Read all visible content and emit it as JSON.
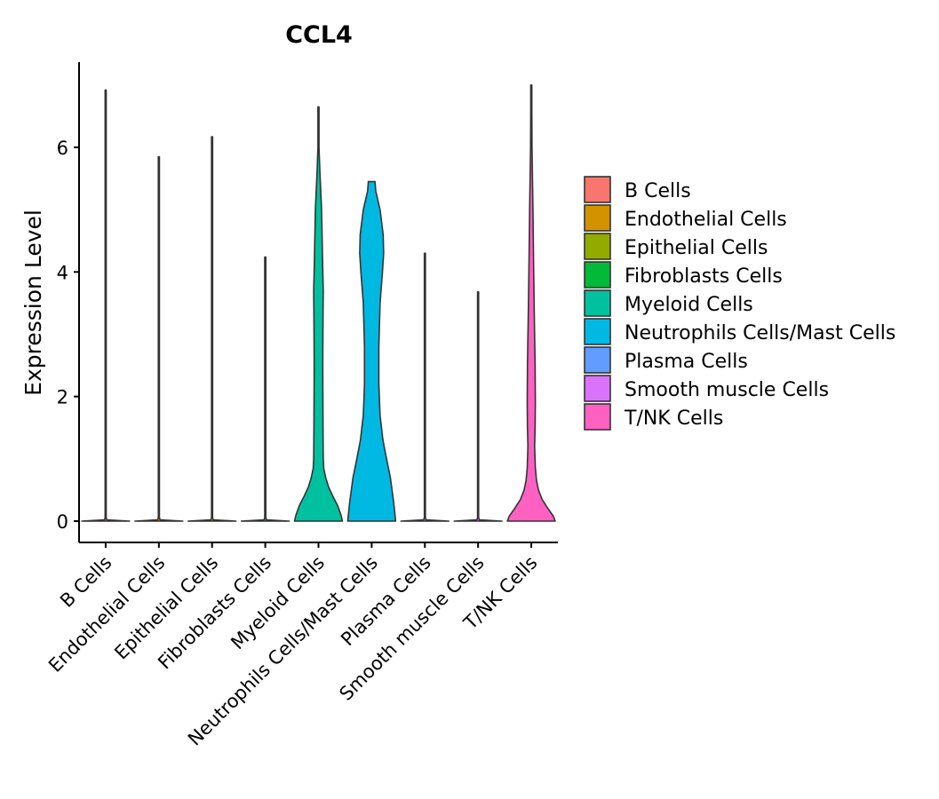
{
  "chart_data": {
    "type": "violin",
    "title": "CCL4",
    "xlabel": "",
    "ylabel": "Expression Level",
    "ylim": [
      -0.35,
      7.35
    ],
    "yticks": [
      0,
      2,
      4,
      6
    ],
    "grid": false,
    "legend_position": "right",
    "categories": [
      "B Cells",
      "Endothelial Cells",
      "Epithelial Cells",
      "Fibroblasts Cells",
      "Myeloid Cells",
      "Neutrophils Cells/Mast Cells",
      "Plasma Cells",
      "Smooth muscle Cells",
      "T/NK Cells"
    ],
    "series": [
      {
        "name": "B Cells",
        "color": "#F8766D",
        "max": 6.92,
        "density": [
          [
            0,
            1.0
          ],
          [
            0.02,
            0.05
          ],
          [
            0.06,
            0.0
          ]
        ]
      },
      {
        "name": "Endothelial Cells",
        "color": "#D39200",
        "max": 5.85,
        "density": [
          [
            0,
            1.0
          ],
          [
            0.02,
            0.05
          ],
          [
            0.06,
            0.0
          ]
        ]
      },
      {
        "name": "Epithelial Cells",
        "color": "#93AA00",
        "max": 6.17,
        "density": [
          [
            0,
            1.0
          ],
          [
            0.02,
            0.05
          ],
          [
            0.06,
            0.0
          ]
        ]
      },
      {
        "name": "Fibroblasts Cells",
        "color": "#00BA38",
        "max": 4.24,
        "density": [
          [
            0,
            1.0
          ],
          [
            0.02,
            0.05
          ],
          [
            0.06,
            0.0
          ]
        ]
      },
      {
        "name": "Myeloid Cells",
        "color": "#00C19F",
        "max": 6.65,
        "density": [
          [
            0,
            1.0
          ],
          [
            0.1,
            0.94
          ],
          [
            0.25,
            0.8
          ],
          [
            0.4,
            0.6
          ],
          [
            0.55,
            0.42
          ],
          [
            0.7,
            0.3
          ],
          [
            0.85,
            0.22
          ],
          [
            1.0,
            0.2
          ],
          [
            1.5,
            0.19
          ],
          [
            2.5,
            0.18
          ],
          [
            3.3,
            0.19
          ],
          [
            3.7,
            0.2
          ],
          [
            4.2,
            0.17
          ],
          [
            5.0,
            0.13
          ],
          [
            5.6,
            0.06
          ],
          [
            6.0,
            0.02
          ],
          [
            6.65,
            0.0
          ]
        ]
      },
      {
        "name": "Neutrophils Cells/Mast Cells",
        "color": "#00B9E3",
        "max": 5.45,
        "density": [
          [
            0,
            1.0
          ],
          [
            0.3,
            0.92
          ],
          [
            0.7,
            0.78
          ],
          [
            1.0,
            0.62
          ],
          [
            1.3,
            0.47
          ],
          [
            1.7,
            0.35
          ],
          [
            2.2,
            0.3
          ],
          [
            2.8,
            0.3
          ],
          [
            3.5,
            0.35
          ],
          [
            4.0,
            0.45
          ],
          [
            4.3,
            0.5
          ],
          [
            4.6,
            0.48
          ],
          [
            5.0,
            0.35
          ],
          [
            5.3,
            0.17
          ],
          [
            5.45,
            0.14
          ]
        ]
      },
      {
        "name": "Plasma Cells",
        "color": "#619CFF",
        "max": 4.3,
        "density": [
          [
            0,
            1.0
          ],
          [
            0.02,
            0.05
          ],
          [
            0.06,
            0.0
          ]
        ]
      },
      {
        "name": "Smooth muscle Cells",
        "color": "#DB72FB",
        "max": 3.68,
        "density": [
          [
            0,
            1.0
          ],
          [
            0.02,
            0.05
          ],
          [
            0.06,
            0.0
          ]
        ]
      },
      {
        "name": "T/NK Cells",
        "color": "#FF61C3",
        "max": 7.0,
        "density": [
          [
            0,
            1.0
          ],
          [
            0.08,
            0.92
          ],
          [
            0.2,
            0.7
          ],
          [
            0.35,
            0.45
          ],
          [
            0.5,
            0.3
          ],
          [
            0.65,
            0.22
          ],
          [
            0.85,
            0.17
          ],
          [
            1.2,
            0.14
          ],
          [
            1.5,
            0.16
          ],
          [
            1.9,
            0.17
          ],
          [
            2.5,
            0.16
          ],
          [
            3.2,
            0.13
          ],
          [
            4.0,
            0.1
          ],
          [
            5.0,
            0.07
          ],
          [
            6.0,
            0.03
          ],
          [
            6.6,
            0.01
          ],
          [
            7.0,
            0.0
          ]
        ]
      }
    ]
  }
}
